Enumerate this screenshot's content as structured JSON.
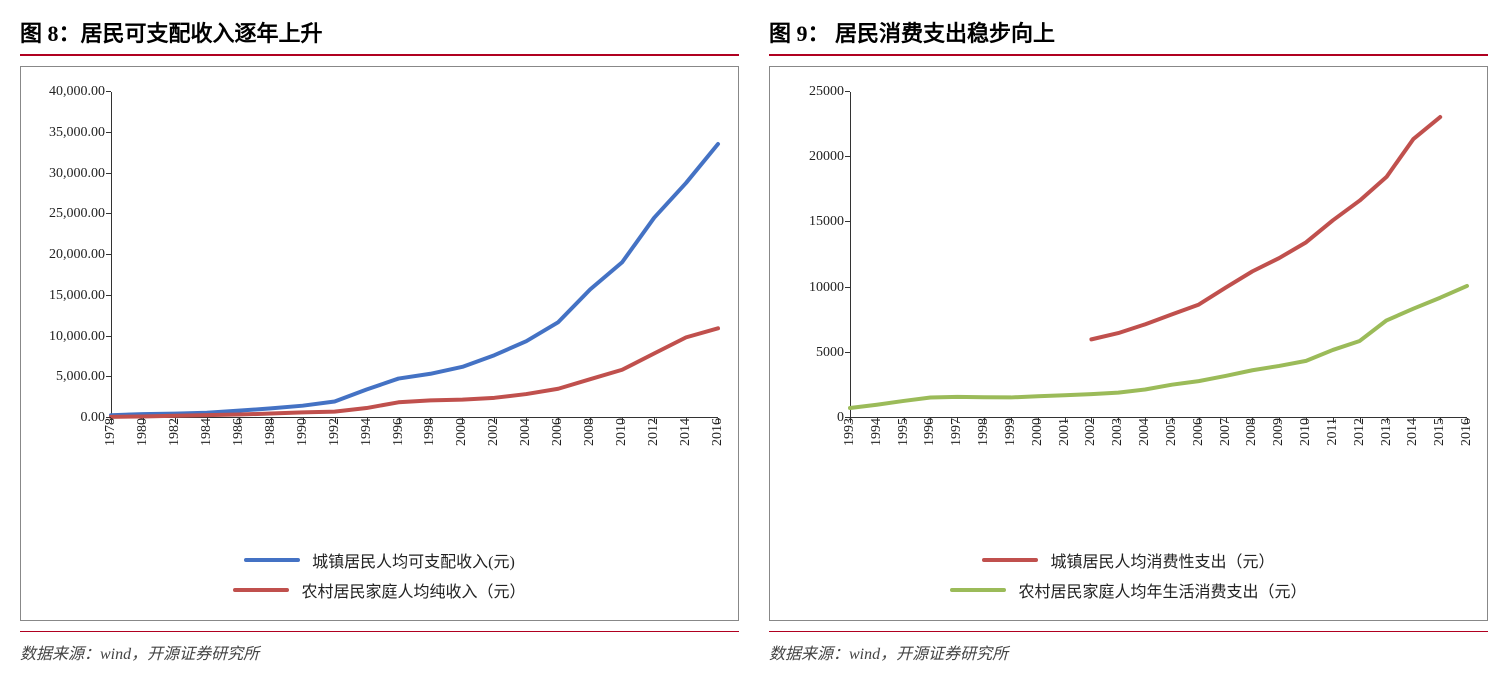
{
  "panels": [
    {
      "title": "图 8：居民可支配收入逐年上升",
      "source": "数据来源：wind，开源证券研究所",
      "chart": {
        "type": "line",
        "x_categories": [
          "1978",
          "1980",
          "1982",
          "1984",
          "1986",
          "1988",
          "1990",
          "1992",
          "1994",
          "1996",
          "1998",
          "2000",
          "2002",
          "2004",
          "2006",
          "2008",
          "2010",
          "2012",
          "2014",
          "2016"
        ],
        "ylim": [
          0,
          40000
        ],
        "ytick_step": 5000,
        "ytick_format": "comma2",
        "axis_color": "#333333",
        "background_color": "#ffffff",
        "label_fontsize": 14,
        "line_width": 4,
        "series": [
          {
            "name": "城镇居民人均可支配收入(元)",
            "color": "#4472c4",
            "values": [
              343,
              478,
              535,
              651,
              900,
              1181,
              1510,
              2027,
              3496,
              4839,
              5425,
              6280,
              7703,
              9422,
              11759,
              15781,
              19109,
              24565,
              28844,
              33616
            ]
          },
          {
            "name": "农村居民家庭人均纯收入（元）",
            "color": "#c0504d",
            "values": [
              134,
              191,
              270,
              355,
              424,
              545,
              686,
              784,
              1221,
              1926,
              2162,
              2253,
              2476,
              2936,
              3587,
              4761,
              5919,
              7917,
              9892,
              11000
            ]
          }
        ]
      }
    },
    {
      "title": "图 9： 居民消费支出稳步向上",
      "source": "数据来源：wind，开源证券研究所",
      "chart": {
        "type": "line",
        "x_categories": [
          "1993",
          "1994",
          "1995",
          "1996",
          "1997",
          "1998",
          "1999",
          "2000",
          "2001",
          "2002",
          "2003",
          "2004",
          "2005",
          "2006",
          "2007",
          "2008",
          "2009",
          "2010",
          "2011",
          "2012",
          "2013",
          "2014",
          "2015",
          "2016"
        ],
        "ylim": [
          0,
          25000
        ],
        "ytick_step": 5000,
        "ytick_format": "plain",
        "axis_color": "#333333",
        "background_color": "#ffffff",
        "label_fontsize": 14,
        "line_width": 4,
        "series": [
          {
            "name": "城镇居民人均消费性支出（元）",
            "color": "#c0504d",
            "start_index": 9,
            "values": [
              6030,
              6511,
              7182,
              7943,
              8697,
              9997,
              11243,
              12265,
              13471,
              15161,
              16674,
              18488,
              21392,
              23079
            ]
          },
          {
            "name": "农村居民家庭人均年生活消费支出（元）",
            "color": "#9bbb59",
            "values": [
              770,
              1017,
              1310,
              1572,
              1617,
              1590,
              1577,
              1670,
              1741,
              1834,
              1943,
              2185,
              2555,
              2829,
              3224,
              3661,
              3994,
              4382,
              5221,
              5908,
              7485,
              8383,
              9223,
              10130
            ]
          }
        ]
      }
    }
  ]
}
